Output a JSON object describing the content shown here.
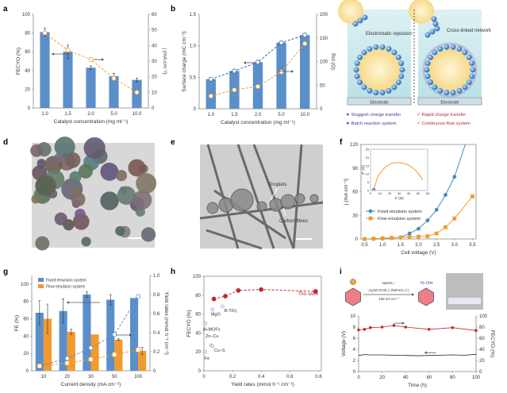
{
  "panel_labels": [
    "a",
    "b",
    "c",
    "d",
    "e",
    "f",
    "g",
    "h",
    "i"
  ],
  "colors": {
    "blue": "#5b8fc9",
    "orange": "#f39a2e",
    "red": "#c0282d",
    "dark_blue": "#3466a8"
  },
  "panel_c": {
    "left_label": "Electrostatic repulsion",
    "right_label": "Cross-linked network",
    "electrode": "Electrode",
    "left_points": [
      "➤ Sluggish charge transfer",
      "➤ Batch reaction system"
    ],
    "right_points": [
      "✓ Rapid charge transfer",
      "✓ Continuous-flow system"
    ]
  },
  "panel_e": {
    "droplets": "Droplets",
    "fibres": "Carbon fibres"
  },
  "panel_i": {
    "reagent": "NaNO₃⁻",
    "conditions": "Ag-50 CFelt (−)/NiFeOₓ (+)",
    "current": "100 mA cm⁻²",
    "product_group": "N−OH"
  },
  "chart_data": [
    {
      "panel": "a",
      "type": "bar",
      "categories": [
        "1.0",
        "1.5",
        "2.0",
        "5.0",
        "10.0"
      ],
      "xlabel": "Catalyst concentration (mg ml⁻¹)",
      "ylabel": "FECYO (%)",
      "y2label": "j (mA cm⁻²)",
      "ylim": [
        0,
        100
      ],
      "y2lim": [
        0,
        60
      ],
      "yticks": [
        "0",
        "20",
        "40",
        "60",
        "80",
        "100"
      ],
      "y2ticks": [
        "0",
        "10",
        "20",
        "30",
        "40",
        "50",
        "60"
      ],
      "series": [
        {
          "axis": "left",
          "kind": "bar",
          "values": [
            81,
            60,
            43,
            34,
            30
          ],
          "errors": [
            4,
            7,
            2,
            3,
            2
          ],
          "color": "#5b8fc9"
        },
        {
          "axis": "right",
          "kind": "dashed-line-markers",
          "values": [
            48,
            37,
            31,
            19,
            10
          ],
          "color": "#f39a2e"
        }
      ]
    },
    {
      "panel": "b",
      "type": "bar",
      "categories": [
        "1.0",
        "1.5",
        "2.0",
        "5.0",
        "10.0"
      ],
      "xlabel": "Catalyst concentration (mg ml⁻¹)",
      "ylabel": "Surface charge (mC cm⁻²)",
      "y2label": "Rct (Ω)",
      "ylim": [
        0,
        1.5
      ],
      "y2lim": [
        0,
        200
      ],
      "yticks": [
        "0",
        "0.5",
        "1.0",
        "1.5"
      ],
      "y2ticks": [
        "0",
        "50",
        "100",
        "150",
        "200"
      ],
      "series": [
        {
          "axis": "left",
          "kind": "bar",
          "values": [
            0.47,
            0.6,
            0.74,
            1.05,
            1.17
          ],
          "color": "#5b8fc9"
        },
        {
          "axis": "left",
          "kind": "dashed-line-markers",
          "values": [
            0.47,
            0.6,
            0.74,
            1.05,
            1.17
          ],
          "color": "#3466a8"
        },
        {
          "axis": "right",
          "kind": "dashed-line-markers",
          "values": [
            27,
            40,
            47,
            78,
            138
          ],
          "color": "#f39a2e"
        }
      ]
    },
    {
      "panel": "f",
      "type": "line",
      "xlabel": "Cell voltage (V)",
      "ylabel": "j (mA cm⁻²)",
      "xlim": [
        0.4,
        3.6
      ],
      "ylim": [
        0,
        120
      ],
      "xticks": [
        "0.5",
        "1.0",
        "1.5",
        "2.0",
        "2.5",
        "3.0",
        "3.5"
      ],
      "yticks": [
        "0",
        "30",
        "60",
        "90",
        "120"
      ],
      "legend": "center-left",
      "series": [
        {
          "name": "Fixed emulsion system",
          "color": "#3b8fc6",
          "marker": "circle",
          "x": [
            0.5,
            0.75,
            1.0,
            1.25,
            1.5,
            1.75,
            2.0,
            2.25,
            2.5,
            2.75,
            3.0,
            3.3
          ],
          "y": [
            0,
            0,
            0.5,
            1,
            2,
            7,
            13,
            23.5,
            37,
            56,
            79,
            120
          ]
        },
        {
          "name": "Flow emulsion system",
          "color": "#f39a2e",
          "marker": "square",
          "x": [
            0.5,
            0.75,
            1.0,
            1.25,
            1.5,
            1.75,
            2.0,
            2.25,
            2.5,
            2.75,
            3.0,
            3.5
          ],
          "y": [
            0,
            0.5,
            1,
            1.5,
            2,
            2.5,
            3,
            3.5,
            7,
            15,
            26,
            54
          ]
        }
      ],
      "inset": {
        "xlabel": "Z′ (Ω)",
        "ylabel": "Z″ (Ω)",
        "xlim": [
          0,
          60
        ],
        "ylim": [
          0,
          25
        ],
        "xticks": [
          "0",
          "10",
          "20",
          "30",
          "40",
          "50",
          "60"
        ],
        "yticks": [
          "0",
          "5",
          "10",
          "15",
          "20",
          "25"
        ],
        "series": [
          {
            "color": "#f39a2e",
            "x": [
              3,
              8,
              15,
              22,
              30,
              38,
              45,
              50,
              55
            ],
            "y": [
              0,
              9,
              14,
              16.5,
              17,
              16,
              13.5,
              10.5,
              6.5
            ]
          },
          {
            "color": "#3466a8",
            "x": [
              2,
              2.5,
              3.5,
              4.5,
              5
            ],
            "y": [
              0,
              1,
              1.4,
              1,
              0
            ]
          }
        ]
      }
    },
    {
      "panel": "g",
      "type": "bar",
      "categories": [
        "10",
        "20",
        "30",
        "50",
        "100"
      ],
      "xlabel": "Current density (mA cm⁻²)",
      "ylabel": "FE (%)",
      "y2label": "Yield rates (mmol h⁻¹ cm⁻²)",
      "ylim": [
        0,
        110
      ],
      "y2lim": [
        0,
        1.0
      ],
      "yticks": [
        "0",
        "20",
        "40",
        "60",
        "80",
        "100"
      ],
      "y2ticks": [
        "0",
        "0.2",
        "0.4",
        "0.6",
        "0.8",
        "1.0"
      ],
      "legend": "top-left",
      "series": [
        {
          "name": "Fixed emulsion system",
          "axis": "left",
          "kind": "bar",
          "values": [
            67,
            69,
            88,
            82,
            84
          ],
          "errors": [
            14,
            14,
            3,
            6,
            0
          ],
          "color": "#5b8fc9"
        },
        {
          "name": "Flow emulsion system",
          "axis": "left",
          "kind": "bar",
          "values": [
            60,
            45,
            42,
            36,
            23
          ],
          "errors": [
            17,
            3,
            0,
            1,
            4
          ],
          "color": "#f39a2e"
        },
        {
          "axis": "right",
          "kind": "dashed-line-markers",
          "marker": "circle",
          "values": [
            0.05,
            0.13,
            0.24,
            0.38,
            0.78
          ],
          "color": "#5b8fc9"
        },
        {
          "axis": "right",
          "kind": "dashed-line-markers",
          "marker": "square",
          "values": [
            0.05,
            0.08,
            0.12,
            0.17,
            0.22
          ],
          "color": "#f39a2e"
        }
      ]
    },
    {
      "panel": "h",
      "type": "scatter",
      "xlabel": "Yield rates (mmol h⁻¹ cm⁻²)",
      "ylabel": "FECYO (%)",
      "xlim": [
        0,
        0.82
      ],
      "ylim": [
        0,
        100
      ],
      "xticks": [
        "0",
        "0.2",
        "0.4",
        "0.6",
        "0.8"
      ],
      "yticks": [
        "0",
        "20",
        "40",
        "60",
        "80",
        "100"
      ],
      "series": [
        {
          "name": "This work",
          "color": "#c0282d",
          "x": [
            0.07,
            0.15,
            0.24,
            0.4,
            0.78
          ],
          "y": [
            76,
            79,
            85,
            86,
            84
          ]
        }
      ],
      "references": [
        {
          "label": "MgO",
          "x": 0.06,
          "y": 65
        },
        {
          "label": "R-TiO₂",
          "x": 0.13,
          "y": 68
        },
        {
          "label": "Al-MOFs",
          "x": 0.01,
          "y": 50
        },
        {
          "label": "Zn–Cu",
          "x": 0.05,
          "y": 27
        },
        {
          "label": "Cu–S",
          "x": 0.06,
          "y": 26
        },
        {
          "label": "Fe",
          "x": 0.01,
          "y": 20
        }
      ]
    },
    {
      "panel": "i",
      "type": "line",
      "xlabel": "Time (h)",
      "ylabel": "Voltage (V)",
      "y2label": "FECYO (%)",
      "xlim": [
        0,
        100
      ],
      "ylim": [
        0,
        10
      ],
      "y2lim": [
        0,
        100
      ],
      "xticks": [
        "0",
        "20",
        "40",
        "60",
        "80",
        "100"
      ],
      "yticks": [
        "0",
        "2",
        "4",
        "6",
        "8",
        "10"
      ],
      "y2ticks": [
        "0",
        "20",
        "40",
        "60",
        "80",
        "100"
      ],
      "series": [
        {
          "axis": "right",
          "color": "#c0282d",
          "x": [
            0,
            5,
            10,
            20,
            30,
            40,
            60,
            80,
            100
          ],
          "y": [
            75,
            76,
            79,
            80,
            83,
            80,
            76,
            79,
            74
          ]
        },
        {
          "axis": "left",
          "color": "#222222",
          "x": [
            0,
            5,
            10,
            20,
            30,
            40,
            50,
            60,
            70,
            80,
            90,
            100
          ],
          "y": [
            2.9,
            3.05,
            3.0,
            3.0,
            2.95,
            2.9,
            2.85,
            2.9,
            2.95,
            3.0,
            2.95,
            3.1
          ]
        }
      ]
    }
  ]
}
